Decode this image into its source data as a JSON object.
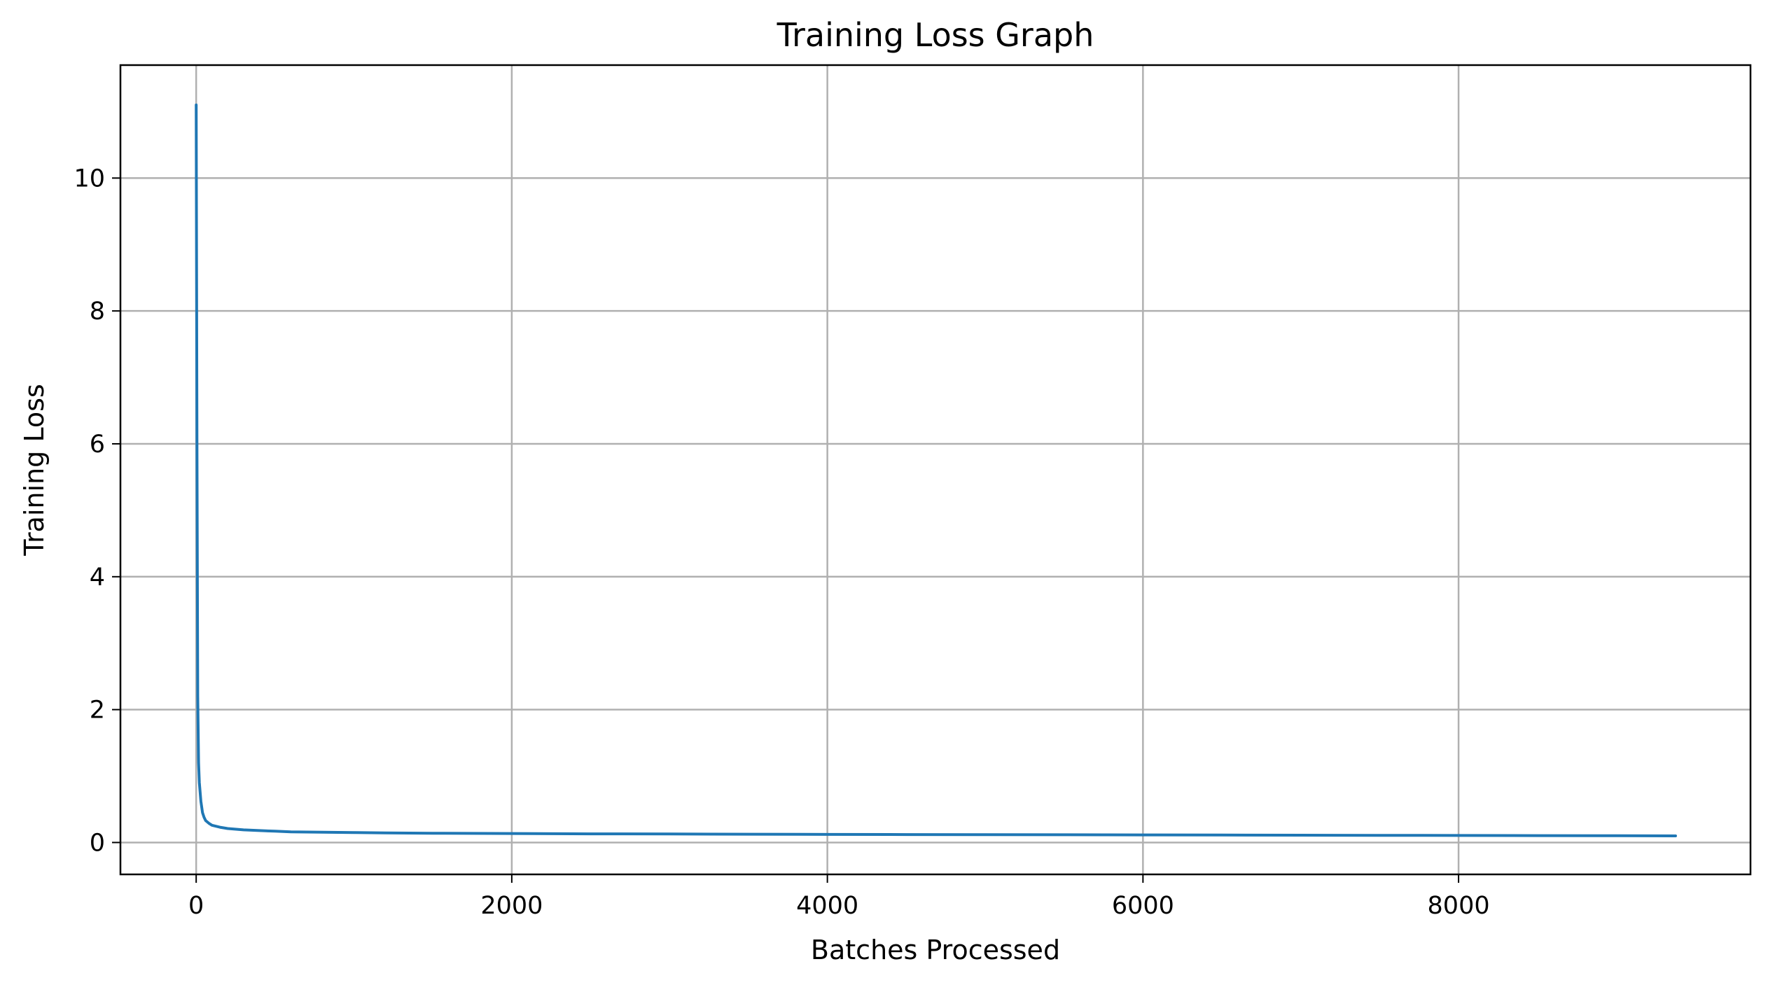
{
  "chart_data": {
    "type": "line",
    "title": "Training Loss Graph",
    "xlabel": "Batches Processed",
    "ylabel": "Training Loss",
    "xlim": [
      -480,
      9850
    ],
    "ylim": [
      -0.48,
      11.7
    ],
    "xticks": [
      0,
      2000,
      4000,
      6000,
      8000
    ],
    "yticks": [
      0,
      2,
      4,
      6,
      8,
      10
    ],
    "xtick_labels": [
      "0",
      "2000",
      "4000",
      "6000",
      "8000"
    ],
    "ytick_labels": [
      "0",
      "2",
      "4",
      "6",
      "8",
      "10"
    ],
    "grid": true,
    "legend": "none",
    "color": "#1f77b4",
    "series": [
      {
        "x": [
          0,
          5,
          10,
          15,
          20,
          30,
          40,
          50,
          60,
          80,
          100,
          150,
          200,
          300,
          400,
          500,
          600,
          800,
          1000,
          1200,
          1500,
          2000,
          2500,
          3000,
          3500,
          4000,
          4500,
          5000,
          5500,
          6000,
          6500,
          7000,
          7500,
          8000,
          8500,
          9000,
          9375
        ],
        "values": [
          11.1,
          6.0,
          2.2,
          1.2,
          0.9,
          0.62,
          0.45,
          0.38,
          0.33,
          0.29,
          0.26,
          0.23,
          0.21,
          0.19,
          0.18,
          0.17,
          0.16,
          0.155,
          0.15,
          0.145,
          0.14,
          0.135,
          0.13,
          0.128,
          0.125,
          0.122,
          0.12,
          0.118,
          0.116,
          0.114,
          0.112,
          0.11,
          0.108,
          0.106,
          0.104,
          0.102,
          0.1
        ]
      }
    ]
  }
}
